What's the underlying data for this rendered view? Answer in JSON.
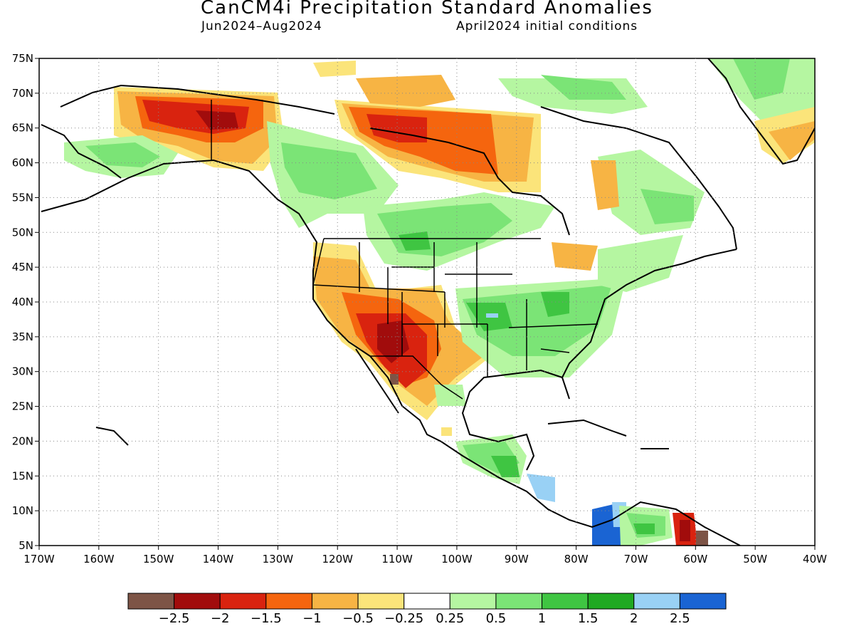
{
  "title": "CanCM4i Precipitation Standard Anomalies",
  "subtitle_left": "Jun2024–Aug2024",
  "subtitle_right": "April2024 initial conditions",
  "map": {
    "lon_range": [
      -170,
      -40
    ],
    "lat_range": [
      5,
      75
    ],
    "lon_ticks": [
      "170W",
      "160W",
      "150W",
      "140W",
      "130W",
      "120W",
      "110W",
      "100W",
      "90W",
      "80W",
      "70W",
      "60W",
      "50W",
      "40W"
    ],
    "lat_ticks": [
      "75N",
      "70N",
      "65N",
      "60N",
      "55N",
      "50N",
      "45N",
      "40N",
      "35N",
      "30N",
      "25N",
      "20N",
      "15N",
      "10N",
      "5N"
    ],
    "gridlines": "dotted"
  },
  "colorbar": {
    "labels": [
      "−2.5",
      "−2",
      "−1.5",
      "−1",
      "−0.5",
      "−0.25",
      "0.25",
      "0.5",
      "1",
      "1.5",
      "2",
      "2.5"
    ],
    "colors": [
      "#7d5446",
      "#a10c0c",
      "#d9230f",
      "#f5650e",
      "#f7b444",
      "#fbe47a",
      "#ffffff",
      "#b5f6a1",
      "#7be476",
      "#3fc542",
      "#20a922",
      "#99d1f5",
      "#1a64d3"
    ]
  },
  "anomaly_regions": [
    {
      "name": "alaska-yukon-dry",
      "category": -1.5,
      "color": "#f5650e"
    },
    {
      "name": "southwest-us-dry",
      "category": -2,
      "color": "#a10c0c"
    },
    {
      "name": "hudson-bay-dry",
      "category": -1.5,
      "color": "#d9230f"
    },
    {
      "name": "central-canada-wet",
      "category": 1,
      "color": "#7be476"
    },
    {
      "name": "eastern-us-wet",
      "category": 1,
      "color": "#7be476"
    },
    {
      "name": "colombia-wet",
      "category": 2.5,
      "color": "#1a64d3"
    },
    {
      "name": "central-america-wet",
      "category": 1.5,
      "color": "#3fc542"
    },
    {
      "name": "greenland-wet",
      "category": 0.5,
      "color": "#b5f6a1"
    }
  ]
}
